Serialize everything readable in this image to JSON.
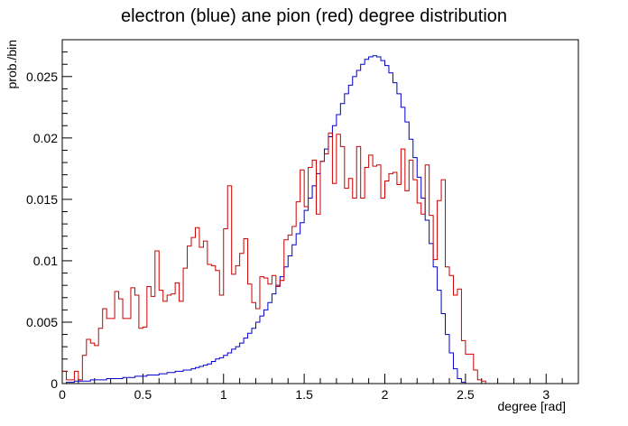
{
  "chart_data": {
    "type": "histogram-step",
    "title": "electron (blue) ane pion (red) degree distribution",
    "xlabel": "degree [rad]",
    "ylabel": "prob./bin",
    "xlim": [
      0,
      3.2
    ],
    "ylim": [
      0,
      0.028
    ],
    "x_ticks": [
      0,
      0.5,
      1,
      1.5,
      2,
      2.5,
      3
    ],
    "x_tick_labels": [
      "0",
      "0.5",
      "1",
      "1.5",
      "2",
      "2.5",
      "3"
    ],
    "y_ticks": [
      0,
      0.005,
      0.01,
      0.015,
      0.02,
      0.025
    ],
    "y_tick_labels": [
      "0",
      "0.005",
      "0.01",
      "0.015",
      "0.02",
      "0.025"
    ],
    "bin_width": 0.025,
    "bin_start": 0,
    "grid": false,
    "legend": "none",
    "series": [
      {
        "color": "#0000cc",
        "values": [
          0,
          0.0001,
          0.0001,
          0.0002,
          0.0002,
          0.0002,
          0.0002,
          0.0003,
          0.0003,
          0.0003,
          0.0003,
          0.0004,
          0.0004,
          0.0004,
          0.0004,
          0.0005,
          0.0005,
          0.0005,
          0.0006,
          0.0006,
          0.0006,
          0.0007,
          0.0007,
          0.0007,
          0.0008,
          0.0008,
          0.0009,
          0.0009,
          0.001,
          0.001,
          0.0011,
          0.0011,
          0.0012,
          0.0013,
          0.0014,
          0.0015,
          0.0016,
          0.0018,
          0.002,
          0.0021,
          0.0023,
          0.0025,
          0.0028,
          0.003,
          0.0033,
          0.0037,
          0.0041,
          0.0045,
          0.005,
          0.0055,
          0.006,
          0.0066,
          0.0073,
          0.008,
          0.0087,
          0.0095,
          0.0104,
          0.0113,
          0.0122,
          0.0131,
          0.0141,
          0.0151,
          0.0161,
          0.0171,
          0.0181,
          0.0191,
          0.0201,
          0.021,
          0.0219,
          0.0228,
          0.0236,
          0.0243,
          0.025,
          0.0255,
          0.026,
          0.0264,
          0.0266,
          0.0267,
          0.0266,
          0.0263,
          0.0259,
          0.0253,
          0.0245,
          0.0236,
          0.0225,
          0.0213,
          0.0199,
          0.0184,
          0.0168,
          0.0151,
          0.0133,
          0.0114,
          0.0095,
          0.0076,
          0.0057,
          0.004,
          0.0025,
          0.0012,
          0.0004,
          0.0001,
          0,
          0,
          0,
          0,
          0,
          0,
          0,
          0,
          0,
          0,
          0,
          0,
          0,
          0,
          0,
          0,
          0,
          0,
          0,
          0,
          0,
          0,
          0,
          0,
          0,
          0,
          0,
          0
        ]
      },
      {
        "color": "#cc0000",
        "values": [
          0.001,
          0.0003,
          0.0003,
          0.001,
          0.0003,
          0.0023,
          0.0036,
          0.0033,
          0.0031,
          0.0045,
          0.0061,
          0.0053,
          0.0053,
          0.0075,
          0.0069,
          0.0053,
          0.0053,
          0.0078,
          0.0072,
          0.0045,
          0.0046,
          0.0079,
          0.0071,
          0.0108,
          0.0076,
          0.0067,
          0.0072,
          0.0073,
          0.0082,
          0.0067,
          0.0094,
          0.0112,
          0.0119,
          0.0127,
          0.0111,
          0.0116,
          0.0097,
          0.0096,
          0.0092,
          0.0072,
          0.0126,
          0.0161,
          0.0089,
          0.0096,
          0.0106,
          0.0118,
          0.0081,
          0.0066,
          0.0061,
          0.0087,
          0.0086,
          0.0081,
          0.0088,
          0.0079,
          0.0084,
          0.0117,
          0.0121,
          0.0128,
          0.0148,
          0.0174,
          0.0144,
          0.0176,
          0.0182,
          0.0138,
          0.0181,
          0.0187,
          0.0204,
          0.0163,
          0.0203,
          0.0193,
          0.0159,
          0.0167,
          0.0151,
          0.0193,
          0.0151,
          0.0176,
          0.0186,
          0.0177,
          0.0178,
          0.0151,
          0.0165,
          0.0171,
          0.0172,
          0.0162,
          0.0191,
          0.0157,
          0.0182,
          0.0166,
          0.0147,
          0.0138,
          0.0178,
          0.0137,
          0.0101,
          0.0149,
          0.0166,
          0.0095,
          0.0088,
          0.0072,
          0.0077,
          0.0035,
          0.0024,
          0.0024,
          0.0011,
          0.0003,
          0.0002,
          0,
          0,
          0,
          0,
          0,
          0,
          0,
          0,
          0,
          0,
          0,
          0,
          0,
          0,
          0,
          0,
          0,
          0,
          0,
          0,
          0,
          0,
          0
        ]
      }
    ]
  }
}
